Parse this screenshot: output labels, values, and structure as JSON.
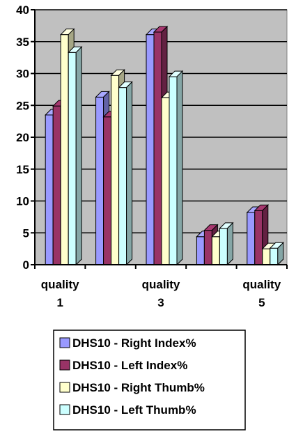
{
  "chart_data": {
    "type": "bar",
    "categories": [
      [
        "quality",
        "1"
      ],
      [
        "",
        ""
      ],
      [
        "quality",
        "3"
      ],
      [
        "",
        ""
      ],
      [
        "quality",
        "5"
      ]
    ],
    "series": [
      {
        "name": "DHS10 - Right Index%",
        "color": "#9999ff",
        "values": [
          23.5,
          26.3,
          36.1,
          4.4,
          8.2
        ]
      },
      {
        "name": "DHS10 - Left Index%",
        "color": "#993366",
        "values": [
          24.9,
          23.2,
          36.5,
          5.4,
          8.5
        ]
      },
      {
        "name": "DHS10 - Right Thumb%",
        "color": "#ffffcc",
        "values": [
          36.1,
          29.7,
          26.2,
          4.4,
          2.5
        ]
      },
      {
        "name": "DHS10 - Left Thumb%",
        "color": "#ccffff",
        "values": [
          33.3,
          27.8,
          29.5,
          5.7,
          2.6
        ]
      }
    ],
    "ylim": [
      0,
      40
    ],
    "yticks": [
      0,
      5,
      10,
      15,
      20,
      25,
      30,
      35,
      40
    ],
    "grid": true,
    "plot_background": "#c0c0c0",
    "legend_position": "bottom"
  }
}
